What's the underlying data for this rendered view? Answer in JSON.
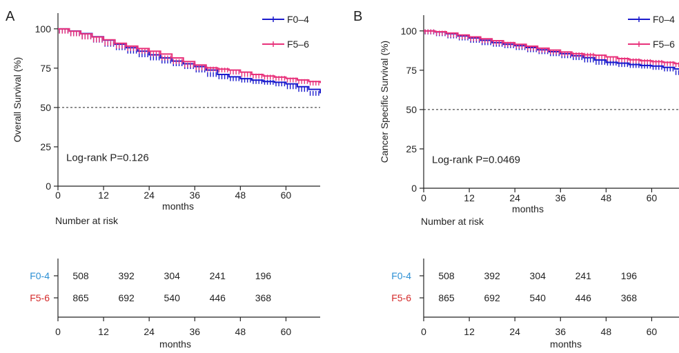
{
  "colors": {
    "F0-4": "#1a1acc",
    "F5-6": "#e8317a",
    "risk_label_F0-4": "#2b8fd4",
    "risk_label_F5-6": "#d42a2a"
  },
  "chart_data": [
    {
      "type": "line",
      "panel": "A",
      "ylabel": "Overall Survival (%)",
      "xlabel": "months",
      "xlim": [
        0,
        69
      ],
      "ylim": [
        0,
        110
      ],
      "xticks": [
        0,
        12,
        24,
        36,
        48,
        60
      ],
      "yticks": [
        0,
        25,
        50,
        75,
        100
      ],
      "reference_line": 50,
      "annotation": "Log-rank P=0.126",
      "legend_position": "top-right",
      "series": [
        {
          "name": "F0–4",
          "color_key": "F0-4",
          "x": [
            0,
            3,
            6,
            9,
            12,
            15,
            18,
            21,
            24,
            27,
            30,
            33,
            36,
            39,
            42,
            45,
            48,
            51,
            54,
            57,
            60,
            63,
            66,
            69
          ],
          "y": [
            100,
            98.6,
            97,
            95,
            92.8,
            90.2,
            88,
            85.8,
            83.5,
            81.5,
            79.5,
            77.8,
            76,
            73.8,
            71,
            69.5,
            68.3,
            67.4,
            66.5,
            66,
            65,
            63.2,
            61.5,
            59
          ]
        },
        {
          "name": "F5–6",
          "color_key": "F5-6",
          "x": [
            0,
            3,
            6,
            9,
            12,
            15,
            18,
            21,
            24,
            27,
            30,
            33,
            36,
            39,
            42,
            45,
            48,
            51,
            54,
            57,
            60,
            63,
            66,
            69
          ],
          "y": [
            100,
            98.5,
            96.8,
            94.8,
            93,
            90.8,
            89,
            87.5,
            85.8,
            84,
            81.5,
            79.2,
            77,
            75.2,
            74.4,
            73.8,
            72.5,
            71,
            70,
            69.3,
            68.5,
            67.5,
            66.5,
            65.5
          ]
        }
      ],
      "risk_table": {
        "title": "Number at risk",
        "xlabel": "months",
        "rows": [
          {
            "label": "F0-4",
            "color_key": "risk_label_F0-4",
            "values": [
              "508",
              "392",
              "304",
              "241",
              "196"
            ]
          },
          {
            "label": "F5-6",
            "color_key": "risk_label_F5-6",
            "values": [
              "865",
              "692",
              "540",
              "446",
              "368"
            ]
          }
        ],
        "value_x": [
          6,
          18,
          30,
          42,
          54
        ],
        "xticks": [
          0,
          12,
          24,
          36,
          48,
          60
        ]
      }
    },
    {
      "type": "line",
      "panel": "B",
      "ylabel": "Cancer Specific Survival (%)",
      "xlabel": "months",
      "xlim": [
        0,
        69
      ],
      "ylim": [
        0,
        110
      ],
      "xticks": [
        0,
        12,
        24,
        36,
        48,
        60
      ],
      "yticks": [
        0,
        25,
        50,
        75,
        100
      ],
      "reference_line": 50,
      "annotation": "Log-rank P=0.0469",
      "legend_position": "top-right",
      "series": [
        {
          "name": "F0–4",
          "color_key": "F0-4",
          "x": [
            0,
            3,
            6,
            9,
            12,
            15,
            18,
            21,
            24,
            27,
            30,
            33,
            36,
            39,
            42,
            45,
            48,
            51,
            54,
            57,
            60,
            63,
            66,
            69
          ],
          "y": [
            100,
            99.3,
            98.2,
            96.8,
            95.5,
            94,
            92.5,
            91.5,
            90.6,
            89.4,
            88,
            86.8,
            85.5,
            84.2,
            83,
            81.5,
            80,
            79.5,
            78.6,
            78,
            77.6,
            76.8,
            75.8,
            73.5
          ]
        },
        {
          "name": "F5–6",
          "color_key": "F5-6",
          "x": [
            0,
            3,
            6,
            9,
            12,
            15,
            18,
            21,
            24,
            27,
            30,
            33,
            36,
            39,
            42,
            45,
            48,
            51,
            54,
            57,
            60,
            63,
            66,
            69
          ],
          "y": [
            100,
            99.5,
            98.6,
            97.4,
            96.2,
            95,
            93.8,
            92.5,
            91.5,
            90.3,
            89,
            87.8,
            86.6,
            85.5,
            84.8,
            84.5,
            83.5,
            82.4,
            81.6,
            81,
            80.5,
            80,
            79.2,
            78.5
          ]
        }
      ],
      "risk_table": {
        "title": "Number at risk",
        "xlabel": "months",
        "rows": [
          {
            "label": "F0-4",
            "color_key": "risk_label_F0-4",
            "values": [
              "508",
              "392",
              "304",
              "241",
              "196"
            ]
          },
          {
            "label": "F5-6",
            "color_key": "risk_label_F5-6",
            "values": [
              "865",
              "692",
              "540",
              "446",
              "368"
            ]
          }
        ],
        "value_x": [
          6,
          18,
          30,
          42,
          54
        ],
        "xticks": [
          0,
          12,
          24,
          36,
          48,
          60
        ]
      }
    }
  ]
}
